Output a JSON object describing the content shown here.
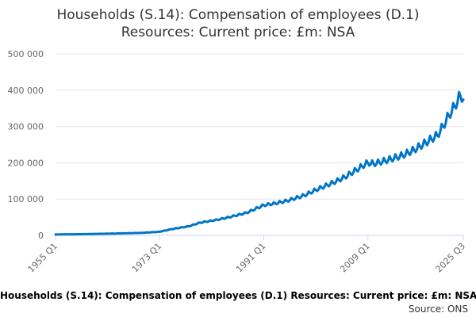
{
  "chart_data": {
    "type": "line",
    "title_line1": "Households (S.14): Compensation of employees (D.1)",
    "title_line2": "Resources: Current price: £m: NSA",
    "caption": "Households (S.14): Compensation of employees (D.1) Resources: Current price: £m: NSA",
    "source_label": "Source: ONS",
    "xlabel": "",
    "ylabel": "",
    "ylim": [
      0,
      500000
    ],
    "y_ticks": [
      0,
      100000,
      200000,
      300000,
      400000,
      500000
    ],
    "y_tick_labels": [
      "0",
      "100 000",
      "200 000",
      "300 000",
      "400 000",
      "500 000"
    ],
    "x_range": [
      1955.0,
      2025.5
    ],
    "x_ticks": [
      1955.0,
      1973.0,
      1991.0,
      2009.0,
      2025.5
    ],
    "x_tick_labels": [
      "1955 Q1",
      "1973 Q1",
      "1991 Q1",
      "2009 Q1",
      "2025 Q3"
    ],
    "grid": true,
    "color": "#0075c8",
    "seasonal_amplitude": 0.035,
    "series": [
      {
        "name": "Compensation of employees",
        "x": [
          1955,
          1960,
          1965,
          1970,
          1973,
          1975,
          1978,
          1980,
          1983,
          1985,
          1988,
          1991,
          1993,
          1995,
          1998,
          2000,
          2003,
          2005,
          2008,
          2009,
          2010,
          2012,
          2015,
          2017,
          2019,
          2020,
          2021,
          2022,
          2023,
          2024,
          2025,
          2025.5
        ],
        "values": [
          2500,
          3500,
          5000,
          7000,
          10000,
          17000,
          25000,
          35000,
          43000,
          50000,
          62000,
          83000,
          88000,
          95000,
          110000,
          125000,
          145000,
          160000,
          190000,
          200000,
          197000,
          205000,
          220000,
          235000,
          255000,
          265000,
          275000,
          300000,
          330000,
          355000,
          385000,
          378000
        ]
      }
    ]
  }
}
